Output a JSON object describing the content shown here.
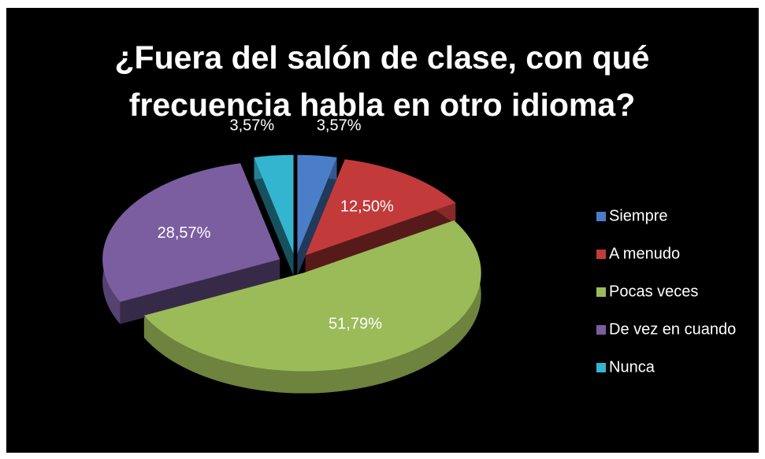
{
  "chart_data": {
    "type": "pie",
    "title": "¿Fuera del salón de clase, con qué frecuencia habla en otro idioma?",
    "categories": [
      "Siempre",
      "A menudo",
      "Pocas veces",
      "De vez en cuando",
      "Nunca"
    ],
    "values": [
      3.57,
      12.5,
      51.79,
      28.57,
      3.57
    ],
    "value_labels": [
      "3,57%",
      "12,50%",
      "51,79%",
      "28,57%",
      "3,57%"
    ],
    "colors": [
      "#4a7ec8",
      "#c23a3a",
      "#9bbb59",
      "#7b5ea0",
      "#33b5d0"
    ],
    "legend": "right"
  }
}
